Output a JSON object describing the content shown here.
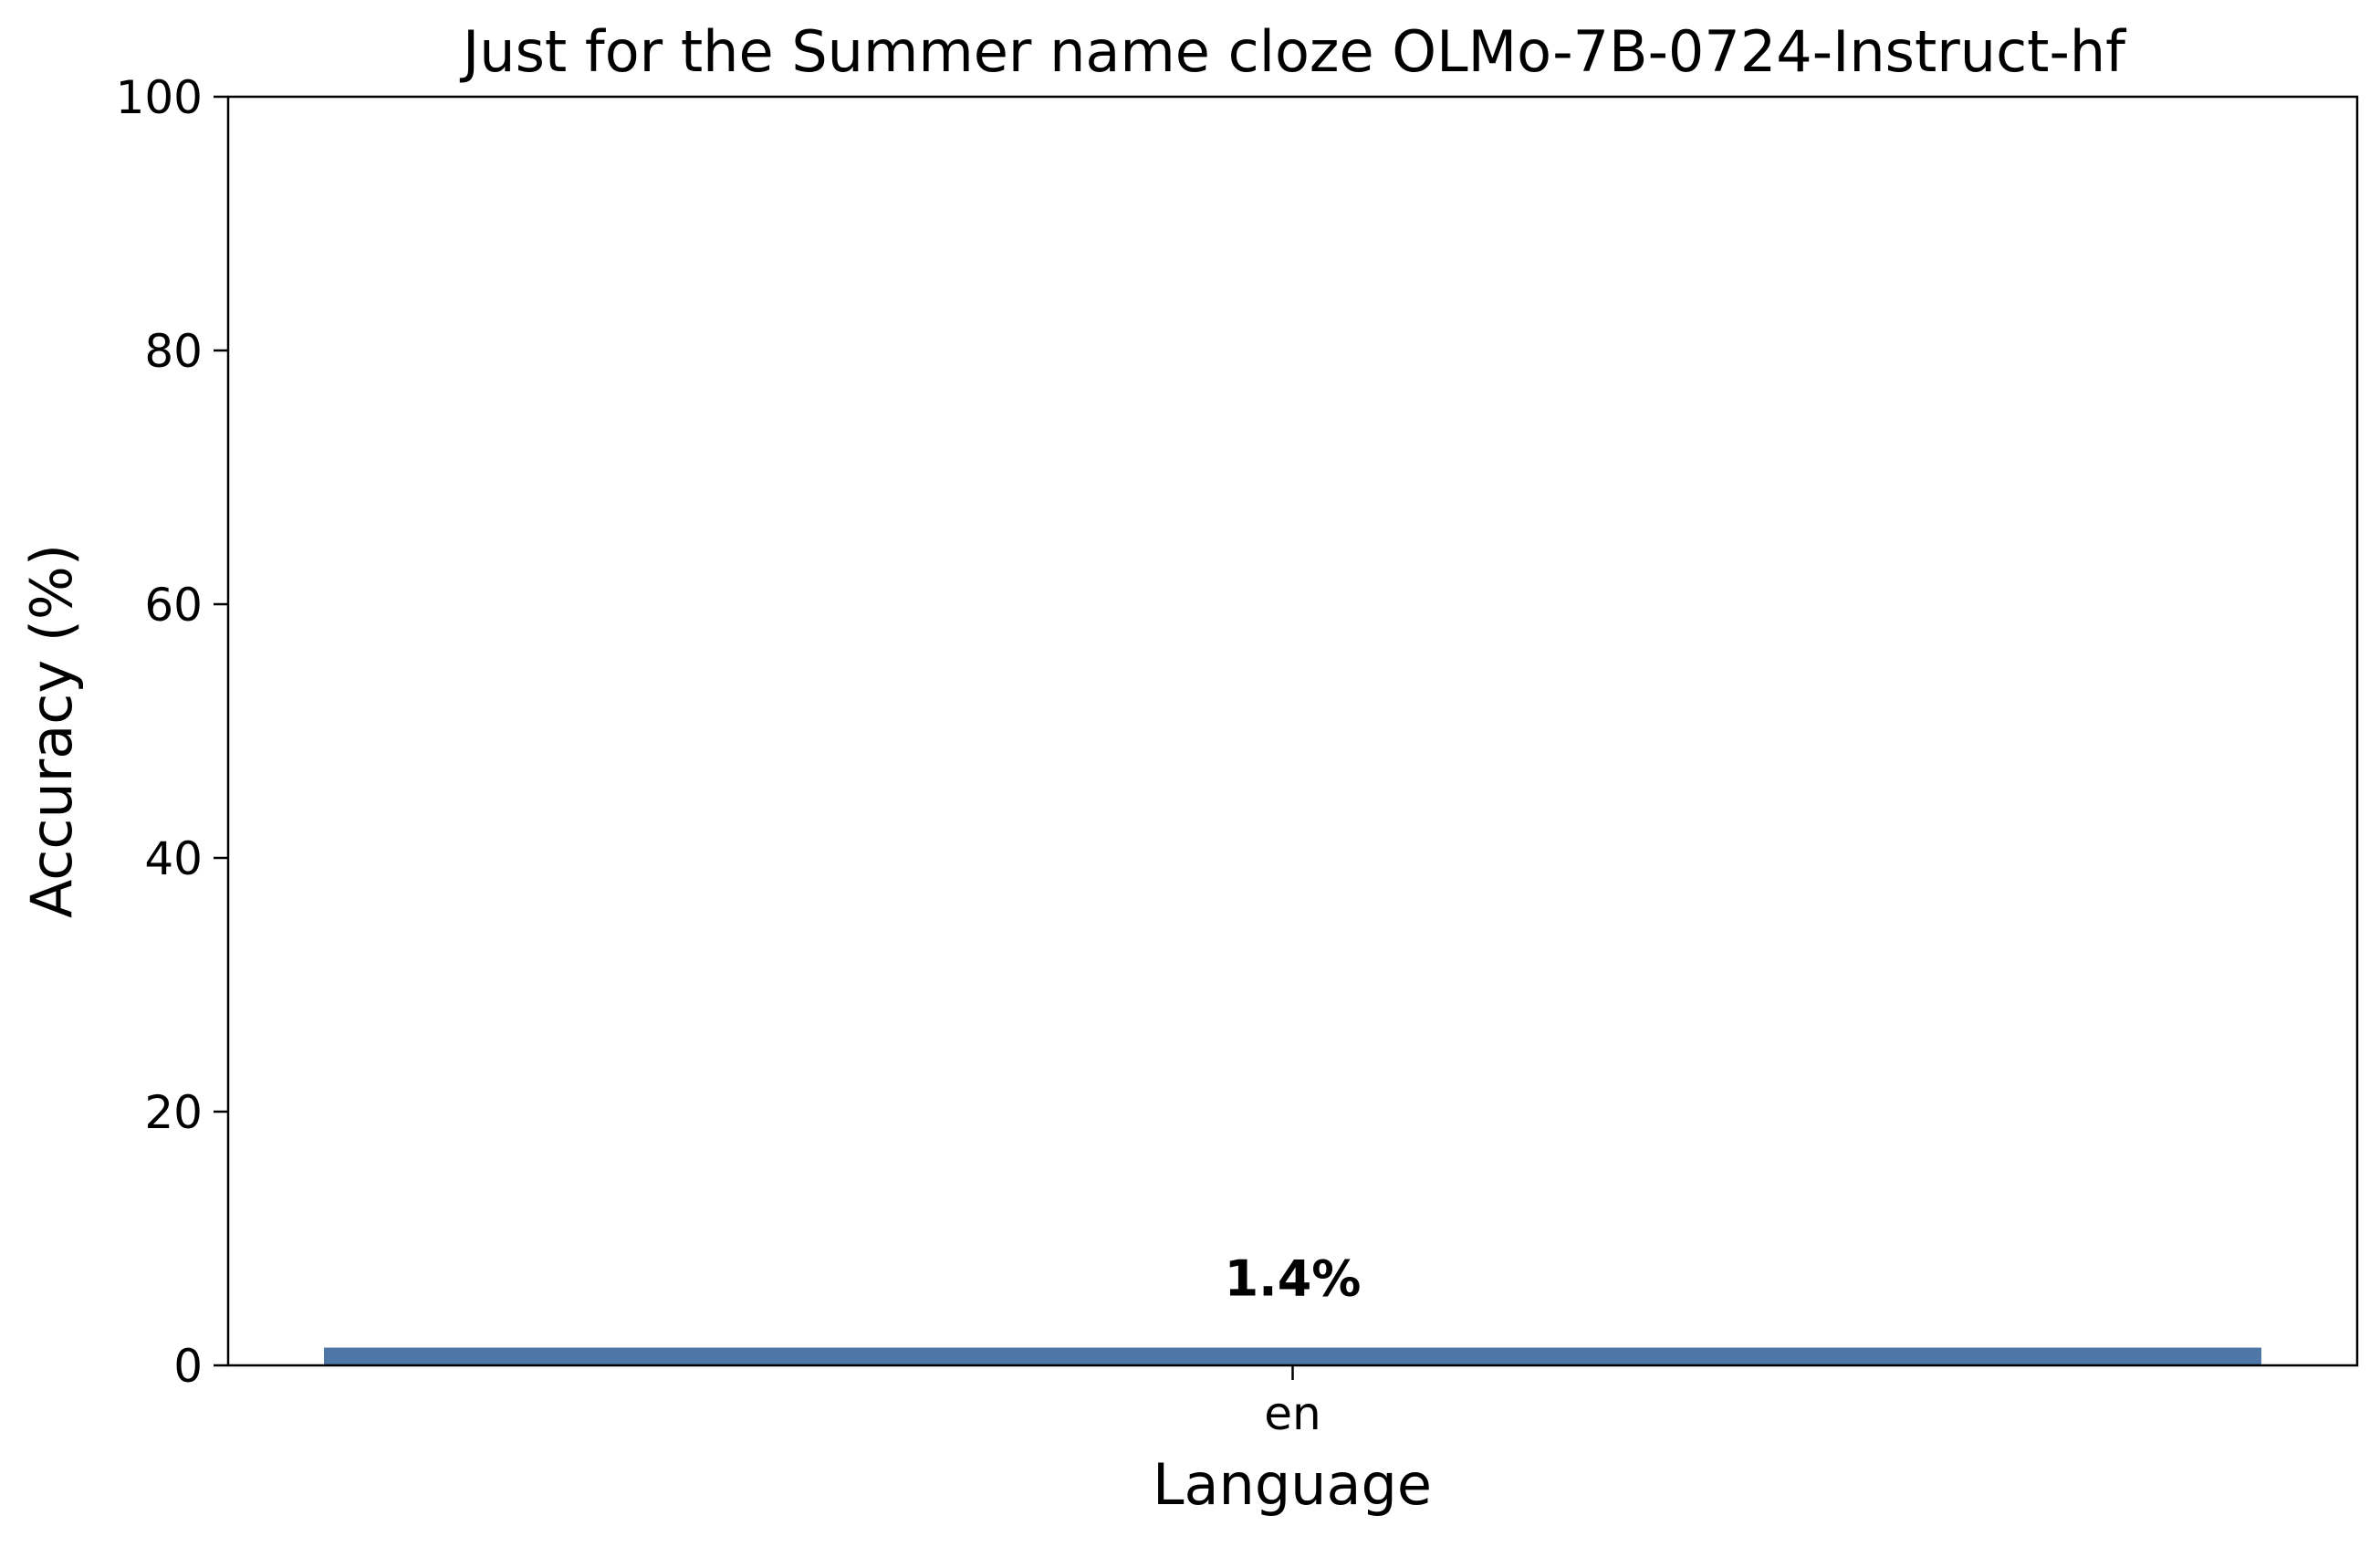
{
  "chart_data": {
    "type": "bar",
    "title": "Just for the Summer name cloze OLMo-7B-0724-Instruct-hf",
    "xlabel": "Language",
    "ylabel": "Accuracy (%)",
    "categories": [
      "en"
    ],
    "values": [
      1.4
    ],
    "data_labels": [
      "1.4%"
    ],
    "ylim": [
      0,
      100
    ],
    "yticks": [
      0,
      20,
      40,
      60,
      80,
      100
    ],
    "grid": false,
    "legend": "none",
    "bar_color": "#4e77a8"
  }
}
